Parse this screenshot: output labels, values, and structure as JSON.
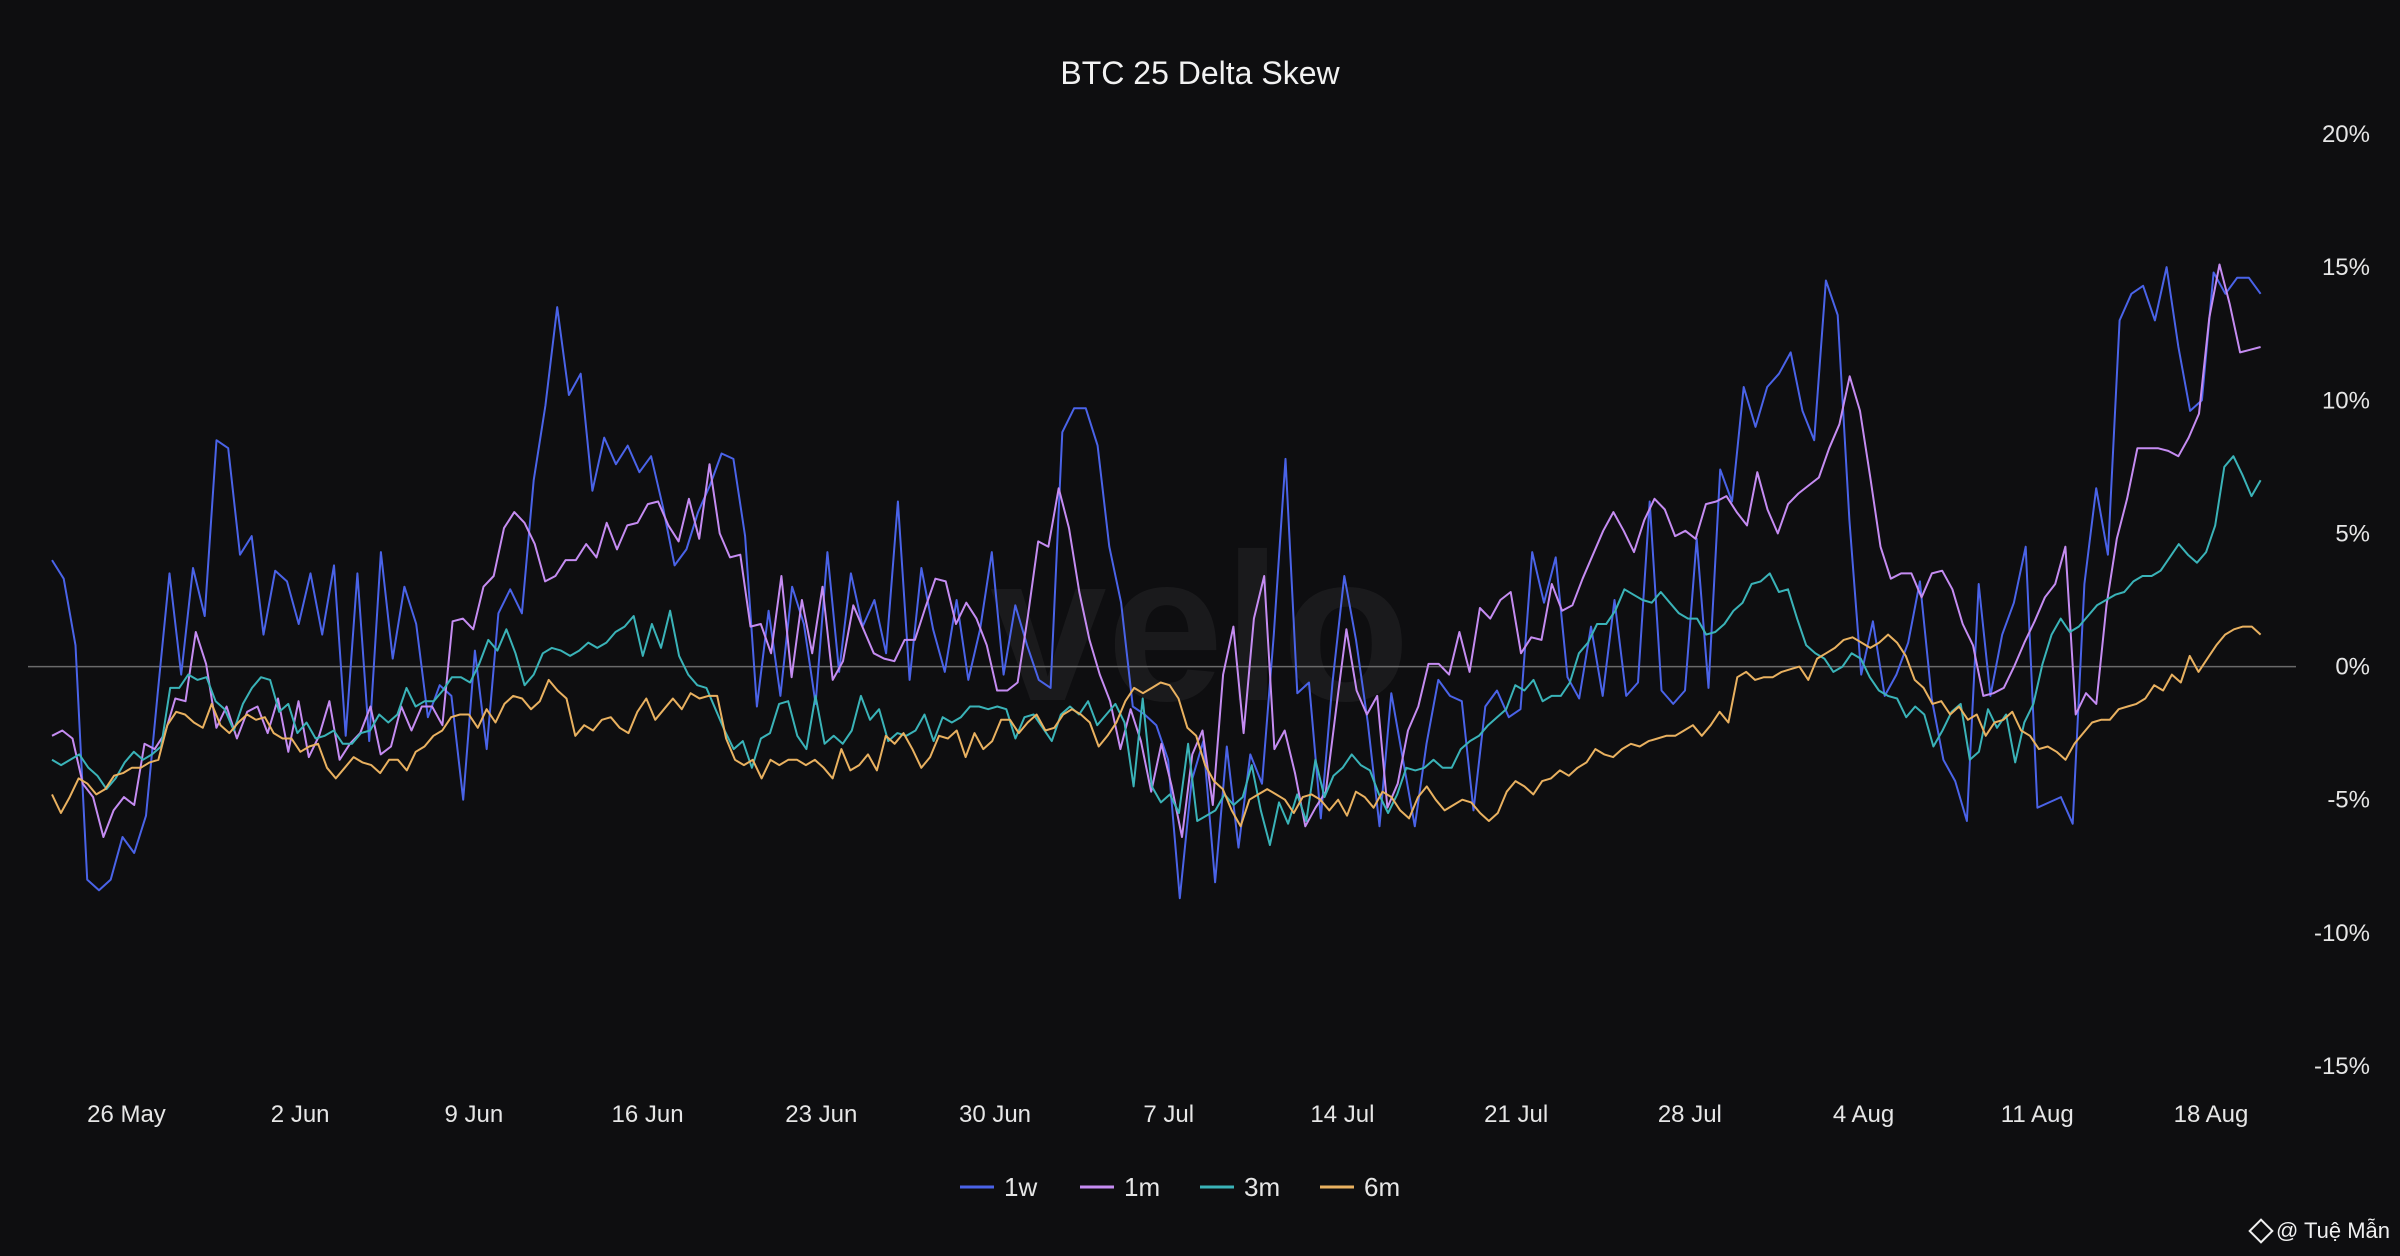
{
  "watermark": "velo",
  "credit": "@ Tuệ Mẫn",
  "chart_data": {
    "type": "line",
    "title": "BTC 25 Delta Skew",
    "xlabel": "",
    "ylabel": "",
    "x_start": "2025-05-23",
    "x_step": "1 day",
    "x_ticks": [
      "26 May",
      "2 Jun",
      "9 Jun",
      "16 Jun",
      "23 Jun",
      "30 Jun",
      "7 Jul",
      "14 Jul",
      "21 Jul",
      "28 Jul",
      "4 Aug",
      "11 Aug",
      "18 Aug"
    ],
    "y_ticks": [
      "20%",
      "15%",
      "10%",
      "5%",
      "0%",
      "-5%",
      "-10%",
      "-15%"
    ],
    "y_tick_values": [
      20,
      15,
      10,
      5,
      0,
      -5,
      -10,
      -15
    ],
    "ylim": [
      -15,
      20
    ],
    "y_axis_position": "right",
    "zero_line": true,
    "grid": false,
    "legend_position": "bottom-center",
    "series": [
      {
        "name": "1w",
        "color": "#4a63e8",
        "values": [
          4,
          3.3,
          0.8,
          -8,
          -8.4,
          -8,
          -6.4,
          -7,
          -5.6,
          -1,
          3.5,
          -0.3,
          3.7,
          1.9,
          8.5,
          8.2,
          4.2,
          4.9,
          1.2,
          3.6,
          3.2,
          1.6,
          3.5,
          1.2,
          3.8,
          -2.6,
          3.5,
          -2.8,
          4.3,
          0.3,
          3,
          1.6,
          -1.9,
          -0.7,
          -1.1,
          -5,
          0.6,
          -3.1,
          2,
          2.9,
          2,
          7,
          9.8,
          13.5,
          10.2,
          11,
          6.6,
          8.6,
          7.6,
          8.3,
          7.3,
          7.9,
          6,
          3.8,
          4.4,
          5.8,
          6.8,
          8,
          7.8,
          4.9,
          -1.5,
          2.1,
          -1.1,
          3,
          1.6,
          -1.4,
          4.3,
          -0.2,
          3.5,
          1.5,
          2.5,
          0.5,
          6.2,
          -0.5,
          3.7,
          1.4,
          -0.2,
          2.5,
          -0.5,
          1.4,
          4.3,
          -0.3,
          2.3,
          0.8,
          -0.5,
          -0.8,
          8.8,
          9.7,
          9.7,
          8.3,
          4.5,
          2.4,
          -1.5,
          -1.8,
          -2.2,
          -3.5,
          -8.7,
          -4.3,
          -2.8,
          -8.1,
          -3,
          -6.8,
          -3.3,
          -4.4,
          1.2,
          7.8,
          -1,
          -0.6,
          -5.7,
          -0.6,
          3.4,
          1,
          -2.1,
          -6,
          -1,
          -3.5,
          -6,
          -2.9,
          -0.5,
          -1.1,
          -1.3,
          -5.4,
          -1.5,
          -0.9,
          -1.9,
          -1.6,
          4.3,
          2.4,
          4.1,
          -0.4,
          -1.2,
          1.5,
          -1.1,
          2.5,
          -1.1,
          -0.6,
          6.2,
          -0.9,
          -1.4,
          -0.9,
          4.8,
          -0.8,
          7.4,
          6.2,
          10.5,
          9,
          10.5,
          11,
          11.8,
          9.6,
          8.5,
          14.5,
          13.2,
          5.5,
          -0.3,
          1.7,
          -1.1,
          -0.3,
          0.9,
          3.2,
          -1.2,
          -3.5,
          -4.3,
          -5.8,
          3.1,
          -1.1,
          1.2,
          2.4,
          4.5,
          -5.3,
          -5.1,
          -4.9,
          -5.9,
          3.1,
          6.7,
          4.2,
          13,
          14,
          14.3,
          13,
          15,
          12,
          9.6,
          10,
          14.8,
          14,
          14.6,
          14.6,
          14
        ]
      },
      {
        "name": "1m",
        "color": "#c58cf2",
        "values": [
          -2.6,
          -2.4,
          -2.7,
          -4.4,
          -4.9,
          -6.4,
          -5.4,
          -4.9,
          -5.2,
          -2.9,
          -3.1,
          -2.5,
          -1.2,
          -1.3,
          1.3,
          0.1,
          -2.3,
          -1.5,
          -2.7,
          -1.7,
          -1.5,
          -2.5,
          -1.2,
          -3.2,
          -1.3,
          -3.4,
          -2.6,
          -1.3,
          -3.5,
          -2.9,
          -2.5,
          -1.5,
          -3.3,
          -3,
          -1.5,
          -2.4,
          -1.5,
          -1.5,
          -2.2,
          1.7,
          1.8,
          1.4,
          3,
          3.4,
          5.2,
          5.8,
          5.4,
          4.6,
          3.2,
          3.4,
          4,
          4,
          4.6,
          4.1,
          5.4,
          4.4,
          5.3,
          5.4,
          6.1,
          6.2,
          5.3,
          4.7,
          6.3,
          4.8,
          7.6,
          5,
          4.1,
          4.2,
          1.5,
          1.6,
          0.5,
          3.4,
          -0.4,
          2.5,
          0.5,
          3,
          -0.5,
          0.2,
          2.3,
          1.4,
          0.5,
          0.3,
          0.2,
          1,
          1,
          2.2,
          3.3,
          3.2,
          1.6,
          2.4,
          1.8,
          0.8,
          -0.9,
          -0.9,
          -0.6,
          1.9,
          4.7,
          4.5,
          6.7,
          5.2,
          2.8,
          1,
          -0.3,
          -1.3,
          -3.1,
          -1.6,
          -2.8,
          -4.7,
          -2.9,
          -4.5,
          -6.4,
          -3.3,
          -2.4,
          -5.2,
          -0.3,
          1.5,
          -2.5,
          1.8,
          3.4,
          -3.1,
          -2.4,
          -4,
          -6,
          -5.3,
          -4.7,
          -1.6,
          1.4,
          -0.9,
          -1.8,
          -1.1,
          -5.3,
          -4.4,
          -2.4,
          -1.5,
          0.1,
          0.1,
          -0.3,
          1.3,
          -0.2,
          2.2,
          1.8,
          2.5,
          2.8,
          0.5,
          1.1,
          1,
          3.1,
          2.1,
          2.3,
          3.3,
          4.2,
          5.1,
          5.8,
          5.1,
          4.3,
          5.5,
          6.3,
          5.9,
          4.9,
          5.1,
          4.8,
          6.1,
          6.2,
          6.4,
          5.8,
          5.3,
          7.3,
          5.9,
          5,
          6.1,
          6.5,
          6.8,
          7.1,
          8.2,
          9.1,
          10.9,
          9.6,
          7.1,
          4.5,
          3.3,
          3.5,
          3.5,
          2.6,
          3.5,
          3.6,
          2.9,
          1.6,
          0.8,
          -1.1,
          -1,
          -0.8,
          0,
          0.9,
          1.7,
          2.6,
          3.1,
          4.5,
          -1.8,
          -1,
          -1.4,
          2.3,
          4.8,
          6.3,
          8.2,
          8.2,
          8.2,
          8.1,
          7.9,
          8.6,
          9.5,
          13.1,
          15.1,
          13.6,
          11.8,
          11.9,
          12
        ]
      },
      {
        "name": "3m",
        "color": "#3ab3b8",
        "values": [
          -3.5,
          -3.7,
          -3.5,
          -3.3,
          -3.8,
          -4.1,
          -4.6,
          -4.2,
          -3.6,
          -3.2,
          -3.5,
          -3.3,
          -3,
          -0.8,
          -0.8,
          -0.3,
          -0.5,
          -0.4,
          -1.3,
          -1.6,
          -2.4,
          -1.4,
          -0.8,
          -0.4,
          -0.5,
          -1.7,
          -1.4,
          -2.5,
          -2.1,
          -2.7,
          -2.6,
          -2.4,
          -2.9,
          -2.9,
          -2.5,
          -2.4,
          -1.8,
          -2.1,
          -1.8,
          -0.8,
          -1.5,
          -1.3,
          -1.3,
          -0.9,
          -0.4,
          -0.4,
          -0.6,
          0.1,
          1,
          0.6,
          1.4,
          0.5,
          -0.7,
          -0.3,
          0.5,
          0.7,
          0.6,
          0.4,
          0.6,
          0.9,
          0.7,
          0.9,
          1.3,
          1.5,
          1.9,
          0.4,
          1.6,
          0.7,
          2.1,
          0.4,
          -0.3,
          -0.7,
          -0.8,
          -1.6,
          -2.4,
          -3.1,
          -2.8,
          -3.8,
          -2.7,
          -2.5,
          -1.4,
          -1.3,
          -2.6,
          -3.1,
          -1.1,
          -2.9,
          -2.6,
          -2.9,
          -2.4,
          -1.1,
          -2,
          -1.6,
          -2.8,
          -2.5,
          -2.6,
          -2.4,
          -1.8,
          -2.8,
          -1.9,
          -2.1,
          -1.9,
          -1.5,
          -1.5,
          -1.6,
          -1.5,
          -1.6,
          -2.7,
          -1.9,
          -1.8,
          -2.3,
          -2.8,
          -1.8,
          -1.5,
          -1.8,
          -1.3,
          -2.2,
          -1.8,
          -1.4,
          -2.1,
          -4.5,
          -1.2,
          -4.5,
          -5.1,
          -4.8,
          -5.5,
          -2.9,
          -5.8,
          -5.6,
          -5.4,
          -4.8,
          -5.2,
          -4.9,
          -3.7,
          -5.4,
          -6.7,
          -5.1,
          -5.9,
          -4.8,
          -5.8,
          -3.5,
          -4.9,
          -4.1,
          -3.8,
          -3.3,
          -3.7,
          -3.9,
          -4.8,
          -5.5,
          -4.8,
          -3.8,
          -3.9,
          -3.8,
          -3.5,
          -3.8,
          -3.8,
          -3.1,
          -2.8,
          -2.6,
          -2.2,
          -1.9,
          -1.6,
          -0.7,
          -0.9,
          -0.5,
          -1.3,
          -1.1,
          -1.1,
          -0.6,
          0.5,
          0.9,
          1.6,
          1.6,
          2.1,
          2.9,
          2.7,
          2.5,
          2.4,
          2.8,
          2.4,
          2,
          1.8,
          1.8,
          1.2,
          1.3,
          1.6,
          2.1,
          2.4,
          3.1,
          3.2,
          3.5,
          2.8,
          2.9,
          1.8,
          0.8,
          0.5,
          0.3,
          -0.2,
          0,
          0.5,
          0.3,
          -0.4,
          -0.9,
          -1.1,
          -1.2,
          -1.9,
          -1.5,
          -1.8,
          -3,
          -2.4,
          -1.7,
          -1.4,
          -3.5,
          -3.2,
          -1.6,
          -2.3,
          -1.8,
          -3.6,
          -2.1,
          -1.4,
          0.1,
          1.2,
          1.8,
          1.3,
          1.5,
          1.9,
          2.3,
          2.5,
          2.7,
          2.8,
          3.2,
          3.4,
          3.4,
          3.6,
          4.1,
          4.6,
          4.2,
          3.9,
          4.3,
          5.3,
          7.5,
          7.9,
          7.2,
          6.4,
          7
        ]
      },
      {
        "name": "6m",
        "color": "#e9b160",
        "values": [
          -4.8,
          -5.5,
          -4.9,
          -4.2,
          -4.4,
          -4.8,
          -4.6,
          -4.1,
          -4,
          -3.8,
          -3.8,
          -3.6,
          -3.5,
          -2.2,
          -1.7,
          -1.8,
          -2.1,
          -2.3,
          -1.4,
          -2.2,
          -2.5,
          -2.1,
          -1.8,
          -2,
          -1.9,
          -2.5,
          -2.7,
          -2.7,
          -3.2,
          -3,
          -2.9,
          -3.8,
          -4.2,
          -3.8,
          -3.4,
          -3.6,
          -3.7,
          -4,
          -3.5,
          -3.5,
          -3.9,
          -3.2,
          -3,
          -2.6,
          -2.4,
          -1.9,
          -1.8,
          -1.8,
          -2.3,
          -1.6,
          -2.1,
          -1.4,
          -1.1,
          -1.2,
          -1.6,
          -1.3,
          -0.5,
          -0.9,
          -1.2,
          -2.6,
          -2.2,
          -2.4,
          -2,
          -1.9,
          -2.3,
          -2.5,
          -1.7,
          -1.2,
          -2,
          -1.6,
          -1.2,
          -1.6,
          -1,
          -1.2,
          -1.1,
          -1.1,
          -2.7,
          -3.5,
          -3.7,
          -3.5,
          -4.2,
          -3.5,
          -3.7,
          -3.5,
          -3.5,
          -3.7,
          -3.5,
          -3.8,
          -4.2,
          -3.1,
          -3.9,
          -3.7,
          -3.3,
          -3.9,
          -2.6,
          -2.9,
          -2.5,
          -3.1,
          -3.8,
          -3.4,
          -2.6,
          -2.7,
          -2.4,
          -3.4,
          -2.5,
          -3.1,
          -2.8,
          -2,
          -2,
          -2.5,
          -2.1,
          -1.8,
          -2.4,
          -2.3,
          -1.8,
          -1.6,
          -1.8,
          -2.1,
          -3,
          -2.6,
          -2.1,
          -1.3,
          -0.8,
          -1,
          -0.8,
          -0.6,
          -0.7,
          -1.2,
          -2.3,
          -2.6,
          -3.7,
          -4.3,
          -4.6,
          -5.4,
          -6,
          -5,
          -4.8,
          -4.6,
          -4.8,
          -5,
          -5.5,
          -4.9,
          -4.8,
          -5,
          -5.4,
          -5,
          -5.6,
          -4.7,
          -4.9,
          -5.3,
          -4.7,
          -4.9,
          -5.4,
          -5.7,
          -4.9,
          -4.5,
          -5,
          -5.4,
          -5.2,
          -5,
          -5.1,
          -5.5,
          -5.8,
          -5.5,
          -4.7,
          -4.3,
          -4.5,
          -4.8,
          -4.3,
          -4.2,
          -3.9,
          -4.1,
          -3.8,
          -3.6,
          -3.1,
          -3.3,
          -3.4,
          -3.1,
          -2.9,
          -3,
          -2.8,
          -2.7,
          -2.6,
          -2.6,
          -2.4,
          -2.2,
          -2.6,
          -2.2,
          -1.7,
          -2.1,
          -0.4,
          -0.2,
          -0.5,
          -0.4,
          -0.4,
          -0.2,
          -0.1,
          0,
          -0.5,
          0.3,
          0.5,
          0.7,
          1,
          1.1,
          0.9,
          0.7,
          0.9,
          1.2,
          0.9,
          0.4,
          -0.5,
          -0.8,
          -1.4,
          -1.3,
          -1.8,
          -1.5,
          -2,
          -1.8,
          -2.6,
          -2.1,
          -2,
          -1.7,
          -2.4,
          -2.6,
          -3.1,
          -3,
          -3.2,
          -3.5,
          -2.9,
          -2.5,
          -2.1,
          -2,
          -2,
          -1.6,
          -1.5,
          -1.4,
          -1.2,
          -0.7,
          -0.9,
          -0.3,
          -0.6,
          0.4,
          -0.2,
          0.3,
          0.8,
          1.2,
          1.4,
          1.5,
          1.5,
          1.2
        ]
      }
    ]
  }
}
